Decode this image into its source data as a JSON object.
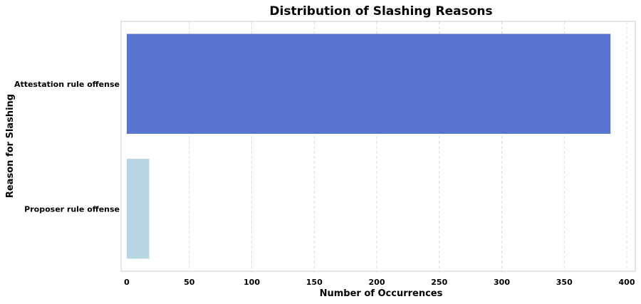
{
  "chart_data": {
    "type": "bar",
    "orientation": "horizontal",
    "title": "Distribution of Slashing Reasons",
    "xlabel": "Number of Occurrences",
    "ylabel": "Reason for Slashing",
    "categories": [
      "Attestation rule offense",
      "Proposer rule offense"
    ],
    "values": [
      387,
      18
    ],
    "colors": [
      "#5874cf",
      "#b5d7e3"
    ],
    "xlim": [
      0,
      405
    ],
    "xticks": [
      0,
      50,
      100,
      150,
      200,
      250,
      300,
      350,
      400
    ],
    "grid": "x-dashed",
    "legend": "none"
  }
}
